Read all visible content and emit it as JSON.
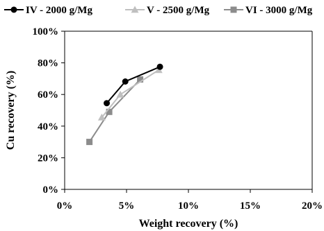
{
  "chart_data": {
    "type": "line",
    "xlabel": "Weight recovery (%)",
    "ylabel": "Cu recovery (%)",
    "xlim": [
      0,
      20
    ],
    "ylim": [
      0,
      100
    ],
    "xticks": [
      0,
      5,
      10,
      15,
      20
    ],
    "yticks": [
      0,
      20,
      40,
      60,
      80,
      100
    ],
    "xtick_labels": [
      "0%",
      "5%",
      "10%",
      "15%",
      "20%"
    ],
    "ytick_labels": [
      "0%",
      "20%",
      "40%",
      "60%",
      "80%",
      "100%"
    ],
    "grid": false,
    "legend_position": "top",
    "series": [
      {
        "name": "IV - 2000 g/Mg",
        "color": "#000000",
        "marker": "circle",
        "x": [
          3.4,
          4.9,
          7.7
        ],
        "y": [
          54.5,
          68.2,
          77.5
        ]
      },
      {
        "name": "V - 2500 g/Mg",
        "color": "#bfbfbf",
        "marker": "triangle",
        "x": [
          3.0,
          4.5,
          7.6
        ],
        "y": [
          45.5,
          60.0,
          75.5
        ]
      },
      {
        "name": "VI - 3000 g/Mg",
        "color": "#8c8c8c",
        "marker": "square",
        "x": [
          2.0,
          3.6,
          6.1
        ],
        "y": [
          30.0,
          49.0,
          69.5
        ]
      }
    ]
  }
}
